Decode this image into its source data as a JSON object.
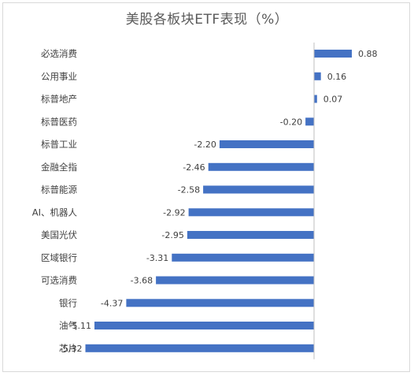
{
  "chart_data": {
    "type": "bar",
    "orientation": "horizontal",
    "title": "美股各板块ETF表现（%）",
    "categories": [
      "必选消费",
      "公用事业",
      "标普地产",
      "标普医药",
      "标普工业",
      "金融全指",
      "标普能源",
      "AI、机器人",
      "美国光伏",
      "区域银行",
      "可选消费",
      "银行",
      "油气",
      "芯片"
    ],
    "values": [
      0.88,
      0.16,
      0.07,
      -0.2,
      -2.2,
      -2.46,
      -2.58,
      -2.92,
      -2.95,
      -3.31,
      -3.68,
      -4.37,
      -5.11,
      -5.32
    ],
    "value_labels": [
      "0.88",
      "0.16",
      "0.07",
      "-0.20",
      "-2.20",
      "-2.46",
      "-2.58",
      "-2.92",
      "-2.95",
      "-3.31",
      "-3.68",
      "-4.37",
      "-5.11",
      "-5.32"
    ],
    "bar_color": "#4472c4",
    "grid": false,
    "legend": "none"
  }
}
